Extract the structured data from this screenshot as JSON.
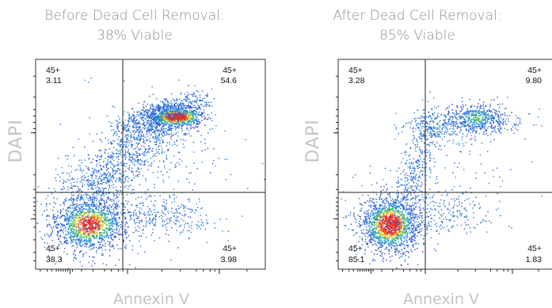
{
  "chart_data": [
    {
      "type": "scatter",
      "title": "Before Dead Cell Removal:",
      "subtitle": "38% Viable",
      "xlabel": "Annexin V",
      "ylabel": "DAPI",
      "quadrants": [
        {
          "position": "upper-left",
          "label": "45+",
          "value": "3.11"
        },
        {
          "position": "upper-right",
          "label": "45+",
          "value": "54.6"
        },
        {
          "position": "lower-left",
          "label": "45+",
          "value": "38.3"
        },
        {
          "position": "lower-right",
          "label": "45+",
          "value": "3.98"
        }
      ]
    },
    {
      "type": "scatter",
      "title": "After Dead Cell Removal:",
      "subtitle": "85% Viable",
      "xlabel": "Annexin V",
      "ylabel": "DAPI",
      "quadrants": [
        {
          "position": "upper-left",
          "label": "45+",
          "value": "3.28"
        },
        {
          "position": "upper-right",
          "label": "45+",
          "value": "9.80"
        },
        {
          "position": "lower-left",
          "label": "45+",
          "value": "85.1"
        },
        {
          "position": "lower-right",
          "label": "45+",
          "value": "1.83"
        }
      ]
    }
  ]
}
